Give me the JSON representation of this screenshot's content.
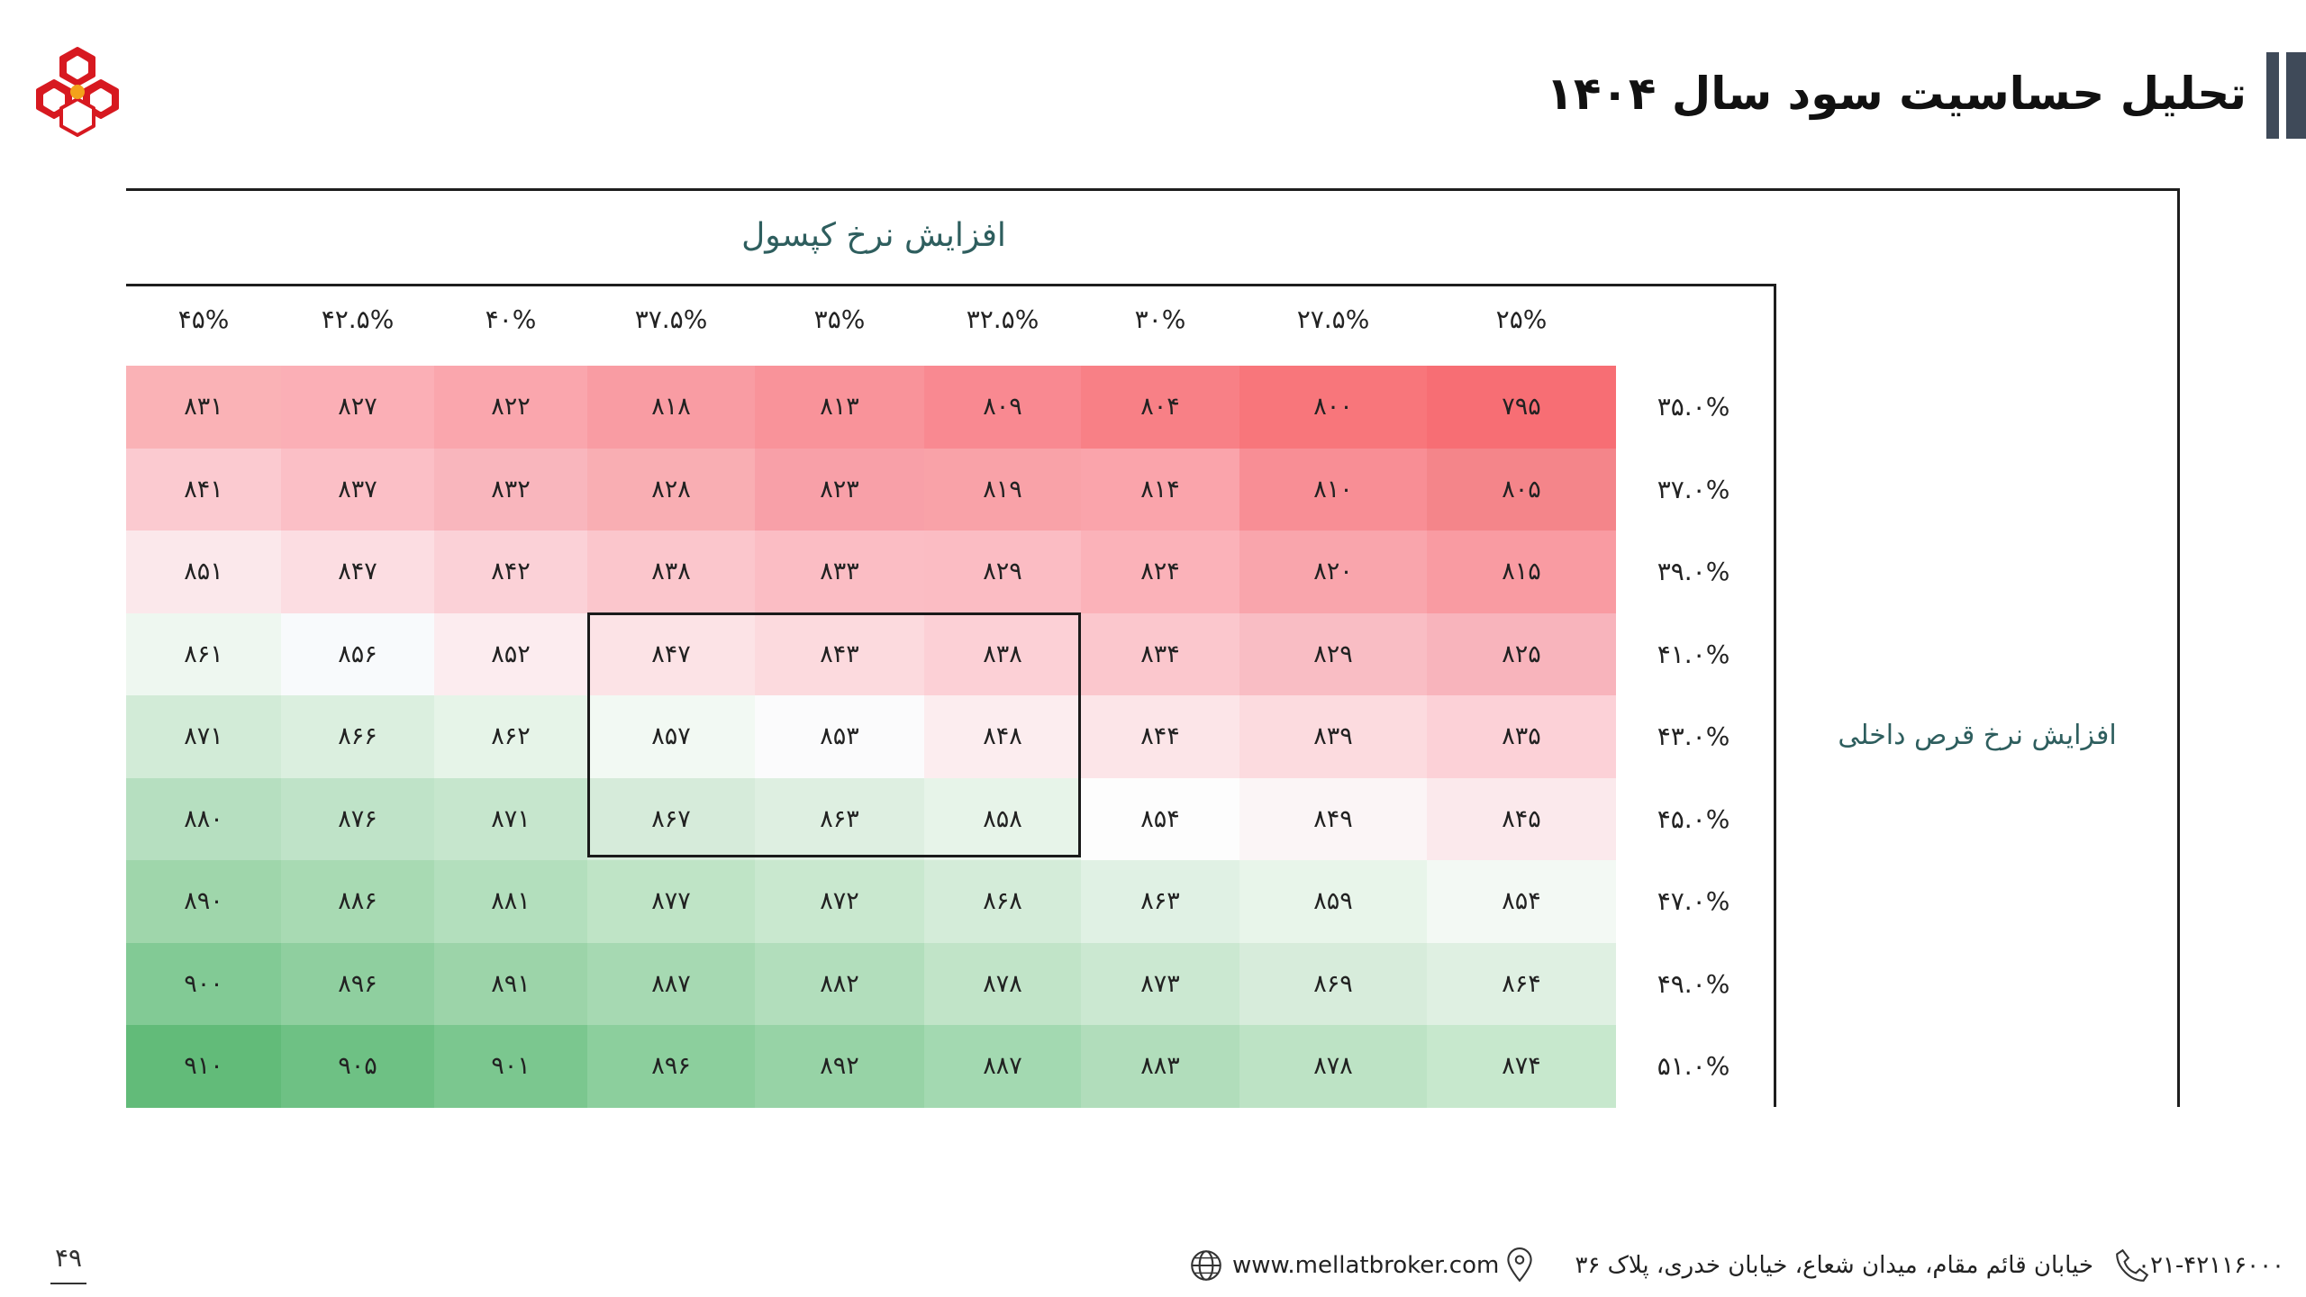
{
  "header": {
    "title": "تحلیل حساسیت سود سال ۱۴۰۴",
    "logo_icon": "company-logo-icon",
    "accent_color": "#3f4a59"
  },
  "table": {
    "column_axis_label": "افزایش نرخ کپسول",
    "row_axis_label": "افزایش نرخ قرص داخلی",
    "columns": [
      "۲۵%",
      "۲۷.۵%",
      "۳۰%",
      "۳۲.۵%",
      "۳۵%",
      "۳۷.۵%",
      "۴۰%",
      "۴۲.۵%",
      "۴۵%"
    ],
    "rows": [
      {
        "label": "۳۵.۰%",
        "values": [
          "۷۹۵",
          "۸۰۰",
          "۸۰۴",
          "۸۰۹",
          "۸۱۳",
          "۸۱۸",
          "۸۲۲",
          "۸۲۷",
          "۸۳۱"
        ]
      },
      {
        "label": "۳۷.۰%",
        "values": [
          "۸۰۵",
          "۸۱۰",
          "۸۱۴",
          "۸۱۹",
          "۸۲۳",
          "۸۲۸",
          "۸۳۲",
          "۸۳۷",
          "۸۴۱"
        ]
      },
      {
        "label": "۳۹.۰%",
        "values": [
          "۸۱۵",
          "۸۲۰",
          "۸۲۴",
          "۸۲۹",
          "۸۳۳",
          "۸۳۸",
          "۸۴۲",
          "۸۴۷",
          "۸۵۱"
        ]
      },
      {
        "label": "۴۱.۰%",
        "values": [
          "۸۲۵",
          "۸۲۹",
          "۸۳۴",
          "۸۳۸",
          "۸۴۳",
          "۸۴۷",
          "۸۵۲",
          "۸۵۶",
          "۸۶۱"
        ]
      },
      {
        "label": "۴۳.۰%",
        "values": [
          "۸۳۵",
          "۸۳۹",
          "۸۴۴",
          "۸۴۸",
          "۸۵۳",
          "۸۵۷",
          "۸۶۲",
          "۸۶۶",
          "۸۷۱"
        ]
      },
      {
        "label": "۴۵.۰%",
        "values": [
          "۸۴۵",
          "۸۴۹",
          "۸۵۴",
          "۸۵۸",
          "۸۶۳",
          "۸۶۷",
          "۸۷۱",
          "۸۷۶",
          "۸۸۰"
        ]
      },
      {
        "label": "۴۷.۰%",
        "values": [
          "۸۵۴",
          "۸۵۹",
          "۸۶۳",
          "۸۶۸",
          "۸۷۲",
          "۸۷۷",
          "۸۸۱",
          "۸۸۶",
          "۸۹۰"
        ]
      },
      {
        "label": "۴۹.۰%",
        "values": [
          "۸۶۴",
          "۸۶۹",
          "۸۷۳",
          "۸۷۸",
          "۸۸۲",
          "۸۸۷",
          "۸۹۱",
          "۸۹۶",
          "۹۰۰"
        ]
      },
      {
        "label": "۵۱.۰%",
        "values": [
          "۸۷۴",
          "۸۷۸",
          "۸۸۳",
          "۸۸۷",
          "۸۹۲",
          "۸۹۶",
          "۹۰۱",
          "۹۰۵",
          "۹۱۰"
        ]
      }
    ],
    "cell_colors": [
      [
        "#f76e74",
        "#f8767b",
        "#f88086",
        "#f98991",
        "#f9939a",
        "#f99ca3",
        "#faa6ad",
        "#fbafb6",
        "#fab2b6"
      ],
      [
        "#f4858a",
        "#f88e95",
        "#faa4ab",
        "#f9a2a8",
        "#f8a0a8",
        "#f9aeb3",
        "#f9b6bd",
        "#fbbfc6",
        "#fbcad0"
      ],
      [
        "#f99ba2",
        "#f9a5ac",
        "#fbb2b9",
        "#fbbcc3",
        "#fbbdc4",
        "#fbc6cc",
        "#fbd1d7",
        "#fcdde2",
        "#fbe8eb"
      ],
      [
        "#f8b4bc",
        "#f9bdc4",
        "#fbc7cd",
        "#fcd0d6",
        "#fcdade",
        "#fce3e6",
        "#fcecef",
        "#f8fafc",
        "#eef7f0"
      ],
      [
        "#fcd1d7",
        "#fcdbdf",
        "#fce5e8",
        "#fcedef",
        "#fbfbfc",
        "#f2f9f3",
        "#e6f4e8",
        "#dbefdf",
        "#d2ebd7"
      ],
      [
        "#fbe9ec",
        "#fbf5f6",
        "#fdfdfd",
        "#e7f4e9",
        "#deefe1",
        "#d6ebda",
        "#c6e6cd",
        "#bfe3c8",
        "#b6dfc0"
      ],
      [
        "#f3f9f4",
        "#e8f5ea",
        "#e0f1e4",
        "#d4ecd9",
        "#c9e8cf",
        "#bfe4c6",
        "#b3dfbd",
        "#a8dab3",
        "#9fd6ab"
      ],
      [
        "#dff0e2",
        "#d7ecdb",
        "#cbe8d1",
        "#c1e4c8",
        "#b2debc",
        "#a6d9b2",
        "#9cd4a9",
        "#8fcf9f",
        "#82ca95"
      ],
      [
        "#c7e8cd",
        "#bde3c5",
        "#b1ddbb",
        "#a3d9b1",
        "#97d3a6",
        "#8ccf9d",
        "#7bc78f",
        "#6ec184",
        "#62bb79"
      ]
    ],
    "highlight": {
      "rows": [
        3,
        5
      ],
      "cols": [
        3,
        5
      ]
    }
  },
  "footer": {
    "page_number": "۴۹",
    "phone": "۰۲۱-۴۲۱۱۶۰۰۰",
    "address": "خیابان قائم مقام، میدان شعاع، خیابان خدری، پلاک ۳۶",
    "website": "www.mellatbroker.com",
    "phone_icon": "phone-icon",
    "location_icon": "location-pin-icon",
    "website_icon": "globe-icon"
  }
}
